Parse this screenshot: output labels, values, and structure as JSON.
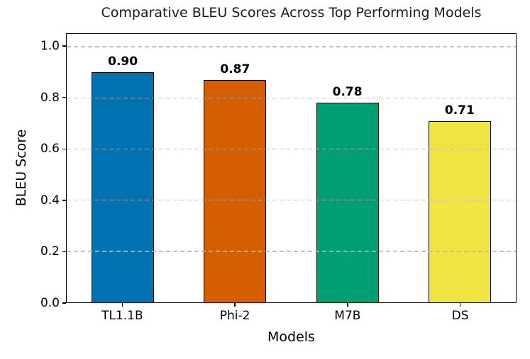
{
  "chart_data": {
    "type": "bar",
    "title": "Comparative BLEU Scores Across Top Performing Models",
    "xlabel": "Models",
    "ylabel": "BLEU Score",
    "categories": [
      "TL1.1B",
      "Phi-2",
      "M7B",
      "DS"
    ],
    "values": [
      0.9,
      0.87,
      0.78,
      0.71
    ],
    "value_labels": [
      "0.90",
      "0.87",
      "0.78",
      "0.71"
    ],
    "bar_colors": [
      "#0072B2",
      "#D55E00",
      "#009E73",
      "#F0E442"
    ],
    "bar_edge_color": "#000000",
    "ylim": [
      0,
      1.05
    ],
    "ytick_labels": [
      "0.0",
      "0.2",
      "0.4",
      "0.6",
      "0.8",
      "1.0"
    ],
    "ytick_values": [
      0.0,
      0.2,
      0.4,
      0.6,
      0.8,
      1.0
    ],
    "grid": "horizontal-dashed",
    "grid_color": "#b7b7b7",
    "legend": "none",
    "background_color": "#ffffff"
  }
}
